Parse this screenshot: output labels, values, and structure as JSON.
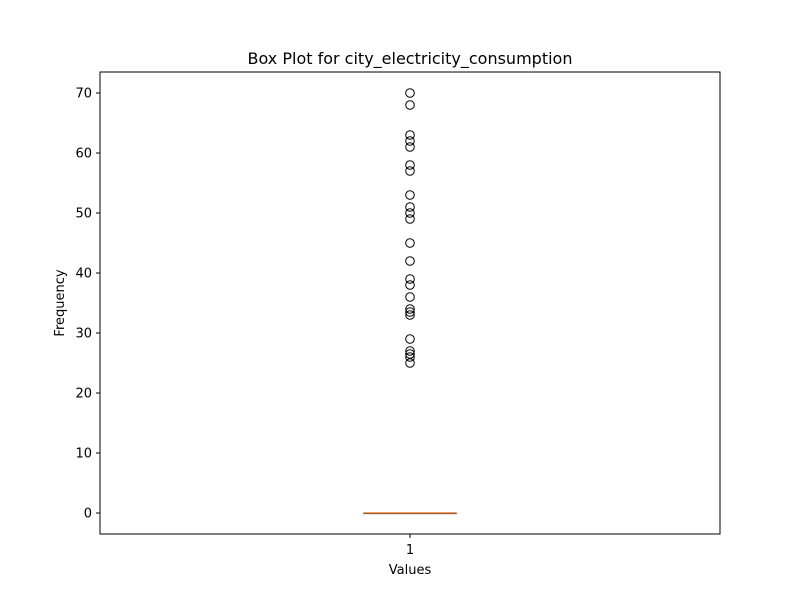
{
  "chart_data": {
    "type": "box",
    "title": "Box Plot for city_electricity_consumption",
    "xlabel": "Values",
    "ylabel": "Frequency",
    "ylim": [
      -3.5,
      73.5
    ],
    "y_ticks": [
      0,
      10,
      20,
      30,
      40,
      50,
      60,
      70
    ],
    "x_ticks": [
      "1"
    ],
    "grid": false,
    "legend": "none",
    "colors": {
      "median": "#e07b39",
      "outlier_edge": "#000000",
      "box": "#000000"
    },
    "boxes": [
      {
        "category": "1",
        "min": 0,
        "q1": 0,
        "median": 0,
        "q3": 0,
        "max": 0,
        "outliers": [
          25,
          26,
          26.5,
          27,
          29,
          33,
          33.5,
          34,
          36,
          38,
          39,
          42,
          45,
          49,
          50,
          51,
          53,
          57,
          58,
          61,
          62,
          63,
          68,
          70
        ]
      }
    ]
  }
}
